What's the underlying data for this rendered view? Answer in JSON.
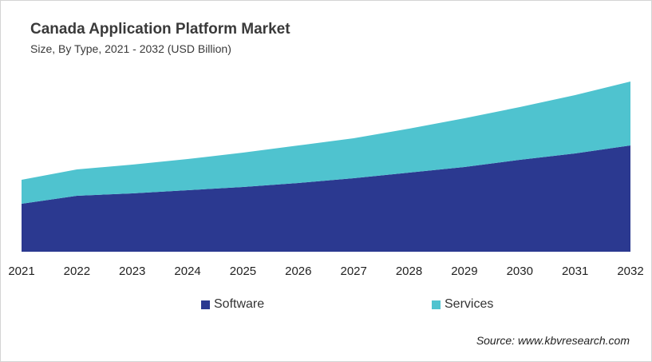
{
  "title": "Canada Application Platform Market",
  "subtitle": "Size, By Type, 2021 - 2032 (USD Billion)",
  "source": "Source: www.kbvresearch.com",
  "chart_data": {
    "type": "area",
    "stacked": true,
    "title": "Canada Application Platform Market",
    "subtitle": "Size, By Type, 2021 - 2032 (USD Billion)",
    "categories": [
      "2021",
      "2022",
      "2023",
      "2024",
      "2025",
      "2026",
      "2027",
      "2028",
      "2029",
      "2030",
      "2031",
      "2032"
    ],
    "series": [
      {
        "name": "Software",
        "color": "#2b3990",
        "values": [
          60,
          70,
          73,
          77,
          81,
          86,
          92,
          99,
          106,
          115,
          123,
          133
        ]
      },
      {
        "name": "Services",
        "color": "#4fc3cf",
        "values": [
          30,
          33,
          36,
          39,
          43,
          47,
          50,
          55,
          61,
          66,
          73,
          80
        ]
      }
    ],
    "y_axis_shown": false,
    "grid": false,
    "legend_position": "bottom"
  }
}
